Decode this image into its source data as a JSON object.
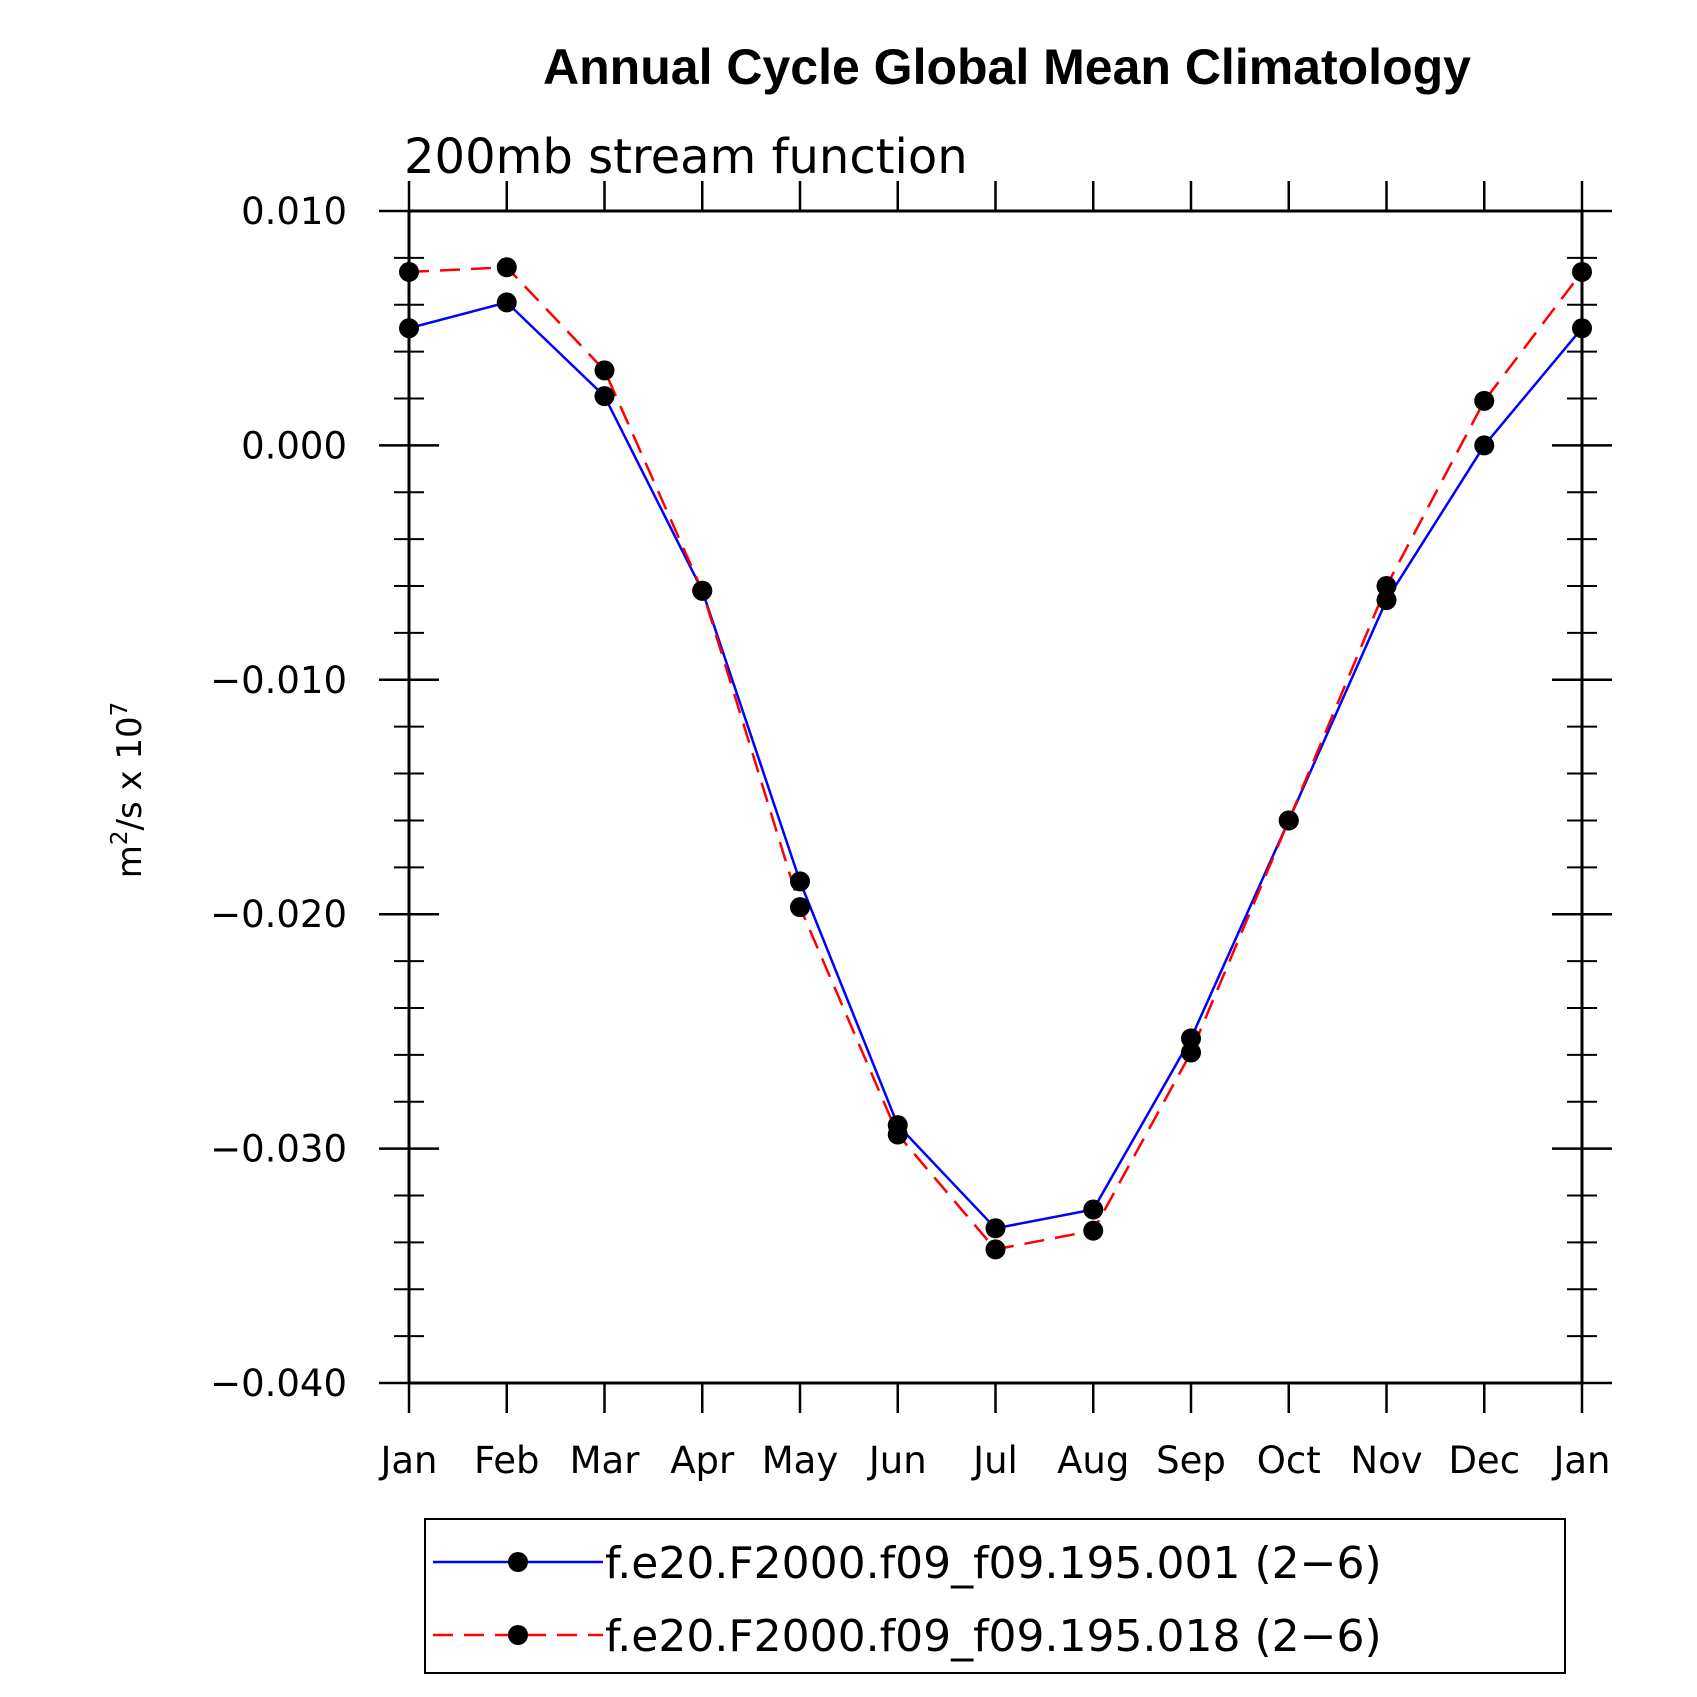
{
  "chart_data": {
    "type": "line",
    "title": "Annual Cycle Global Mean Climatology",
    "subtitle": "200mb stream function",
    "ylabel": "m2/s x 107",
    "ylabel_parts": {
      "base": "m",
      "sup1": "2",
      "mid": "/s x 10",
      "sup2": "7"
    },
    "xlabel": "",
    "categories": [
      "Jan",
      "Feb",
      "Mar",
      "Apr",
      "May",
      "Jun",
      "Jul",
      "Aug",
      "Sep",
      "Oct",
      "Nov",
      "Dec",
      "Jan"
    ],
    "ylim": [
      -0.04,
      0.01
    ],
    "yticks": [
      "0.010",
      "0.000",
      "−0.010",
      "−0.020",
      "−0.030",
      "−0.040"
    ],
    "ytick_values": [
      0.01,
      0.0,
      -0.01,
      -0.02,
      -0.03,
      -0.04
    ],
    "series": [
      {
        "name": "f.e20.F2000.f09_f09.195.001 (2−6)",
        "color": "#0000ff",
        "dash": "solid",
        "values": [
          0.005,
          0.0061,
          0.0021,
          -0.0062,
          -0.0186,
          -0.029,
          -0.0334,
          -0.0326,
          -0.0253,
          -0.016,
          -0.0066,
          0.0,
          0.005
        ]
      },
      {
        "name": "f.e20.F2000.f09_f09.195.018 (2−6)",
        "color": "#ff0000",
        "dash": "dashed",
        "values": [
          0.0074,
          0.0076,
          0.0032,
          -0.0062,
          -0.0197,
          -0.0294,
          -0.0343,
          -0.0335,
          -0.0259,
          -0.016,
          -0.006,
          0.0019,
          0.0074
        ]
      }
    ],
    "marker_color": "#000000",
    "legend_position": "bottom"
  }
}
